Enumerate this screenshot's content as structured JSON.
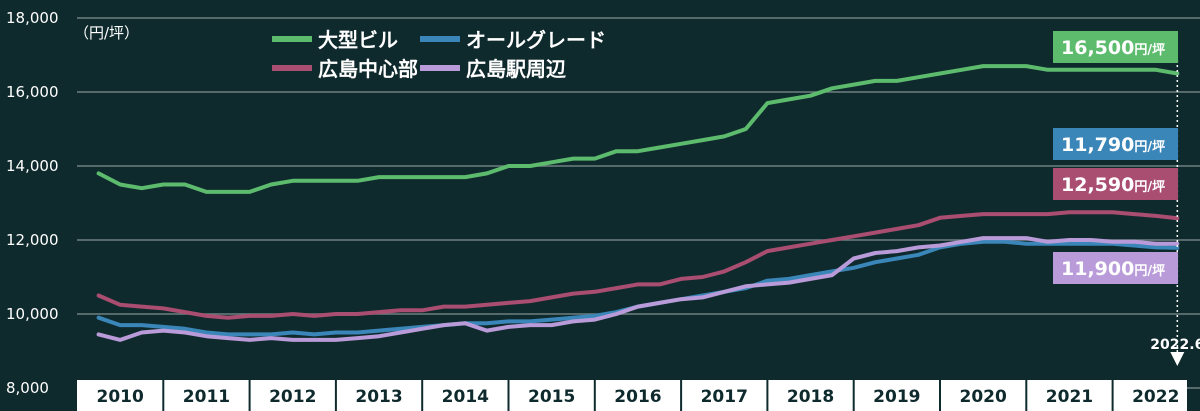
{
  "chart_data": {
    "type": "line",
    "unit_label": "（円/坪）",
    "ylim": [
      8000,
      18000
    ],
    "y_ticks": [
      8000,
      10000,
      12000,
      14000,
      16000,
      18000
    ],
    "y_tick_labels": [
      "8,000",
      "10,000",
      "12,000",
      "14,000",
      "16,000",
      "18,000"
    ],
    "x_categories": [
      "2010",
      "2011",
      "2012",
      "2013",
      "2014",
      "2015",
      "2016",
      "2017",
      "2018",
      "2019",
      "2020",
      "2021",
      "2022"
    ],
    "grid": true,
    "legend_placement": "top-center",
    "marker": {
      "label": "2022.6",
      "x": 2022.25
    },
    "series": [
      {
        "name": "大型ビル",
        "color": "#5dbb6e",
        "end_label": "16,500",
        "end_unit": "円/坪",
        "x": [
          2009.75,
          2010.0,
          2010.25,
          2010.5,
          2010.75,
          2011.0,
          2011.25,
          2011.5,
          2011.75,
          2012.0,
          2012.25,
          2012.5,
          2012.75,
          2013.0,
          2013.25,
          2013.5,
          2013.75,
          2014.0,
          2014.25,
          2014.5,
          2014.75,
          2015.0,
          2015.25,
          2015.5,
          2015.75,
          2016.0,
          2016.25,
          2016.5,
          2016.75,
          2017.0,
          2017.25,
          2017.5,
          2017.75,
          2018.0,
          2018.25,
          2018.5,
          2018.75,
          2019.0,
          2019.25,
          2019.5,
          2019.75,
          2020.0,
          2020.25,
          2020.5,
          2020.75,
          2021.0,
          2021.25,
          2021.5,
          2021.75,
          2022.0,
          2022.25
        ],
        "values": [
          13800,
          13500,
          13400,
          13500,
          13500,
          13300,
          13300,
          13300,
          13500,
          13600,
          13600,
          13600,
          13600,
          13700,
          13700,
          13700,
          13700,
          13700,
          13800,
          14000,
          14000,
          14100,
          14200,
          14200,
          14400,
          14400,
          14500,
          14600,
          14700,
          14800,
          15000,
          15700,
          15800,
          15900,
          16100,
          16200,
          16300,
          16300,
          16400,
          16500,
          16600,
          16700,
          16700,
          16700,
          16600,
          16600,
          16600,
          16600,
          16600,
          16600,
          16500
        ]
      },
      {
        "name": "オールグレード",
        "color": "#3a86b8",
        "end_label": "11,790",
        "end_unit": "円/坪",
        "x": [
          2009.75,
          2010.0,
          2010.25,
          2010.5,
          2010.75,
          2011.0,
          2011.25,
          2011.5,
          2011.75,
          2012.0,
          2012.25,
          2012.5,
          2012.75,
          2013.0,
          2013.25,
          2013.5,
          2013.75,
          2014.0,
          2014.25,
          2014.5,
          2014.75,
          2015.0,
          2015.25,
          2015.5,
          2015.75,
          2016.0,
          2016.25,
          2016.5,
          2016.75,
          2017.0,
          2017.25,
          2017.5,
          2017.75,
          2018.0,
          2018.25,
          2018.5,
          2018.75,
          2019.0,
          2019.25,
          2019.5,
          2019.75,
          2020.0,
          2020.25,
          2020.5,
          2020.75,
          2021.0,
          2021.25,
          2021.5,
          2021.75,
          2022.0,
          2022.25
        ],
        "values": [
          9900,
          9700,
          9700,
          9650,
          9600,
          9500,
          9450,
          9450,
          9450,
          9500,
          9450,
          9500,
          9500,
          9550,
          9600,
          9650,
          9700,
          9750,
          9750,
          9800,
          9800,
          9850,
          9900,
          9950,
          10050,
          10200,
          10300,
          10400,
          10500,
          10600,
          10700,
          10900,
          10950,
          11050,
          11150,
          11250,
          11400,
          11500,
          11600,
          11800,
          11900,
          11950,
          11950,
          11900,
          11900,
          11900,
          11900,
          11900,
          11850,
          11800,
          11790
        ]
      },
      {
        "name": "広島中心部",
        "color": "#a94d71",
        "end_label": "12,590",
        "end_unit": "円/坪",
        "x": [
          2009.75,
          2010.0,
          2010.25,
          2010.5,
          2010.75,
          2011.0,
          2011.25,
          2011.5,
          2011.75,
          2012.0,
          2012.25,
          2012.5,
          2012.75,
          2013.0,
          2013.25,
          2013.5,
          2013.75,
          2014.0,
          2014.25,
          2014.5,
          2014.75,
          2015.0,
          2015.25,
          2015.5,
          2015.75,
          2016.0,
          2016.25,
          2016.5,
          2016.75,
          2017.0,
          2017.25,
          2017.5,
          2017.75,
          2018.0,
          2018.25,
          2018.5,
          2018.75,
          2019.0,
          2019.25,
          2019.5,
          2019.75,
          2020.0,
          2020.25,
          2020.5,
          2020.75,
          2021.0,
          2021.25,
          2021.5,
          2021.75,
          2022.0,
          2022.25
        ],
        "values": [
          10500,
          10250,
          10200,
          10150,
          10050,
          9950,
          9900,
          9950,
          9950,
          10000,
          9950,
          10000,
          10000,
          10050,
          10100,
          10100,
          10200,
          10200,
          10250,
          10300,
          10350,
          10450,
          10550,
          10600,
          10700,
          10800,
          10800,
          10950,
          11000,
          11150,
          11400,
          11700,
          11800,
          11900,
          12000,
          12100,
          12200,
          12300,
          12400,
          12600,
          12650,
          12700,
          12700,
          12700,
          12700,
          12750,
          12750,
          12750,
          12700,
          12650,
          12590
        ]
      },
      {
        "name": "広島駅周辺",
        "color": "#b89bd8",
        "end_label": "11,900",
        "end_unit": "円/坪",
        "x": [
          2009.75,
          2010.0,
          2010.25,
          2010.5,
          2010.75,
          2011.0,
          2011.25,
          2011.5,
          2011.75,
          2012.0,
          2012.25,
          2012.5,
          2012.75,
          2013.0,
          2013.25,
          2013.5,
          2013.75,
          2014.0,
          2014.25,
          2014.5,
          2014.75,
          2015.0,
          2015.25,
          2015.5,
          2015.75,
          2016.0,
          2016.25,
          2016.5,
          2016.75,
          2017.0,
          2017.25,
          2017.5,
          2017.75,
          2018.0,
          2018.25,
          2018.5,
          2018.75,
          2019.0,
          2019.25,
          2019.5,
          2019.75,
          2020.0,
          2020.25,
          2020.5,
          2020.75,
          2021.0,
          2021.25,
          2021.5,
          2021.75,
          2022.0,
          2022.25
        ],
        "values": [
          9450,
          9300,
          9500,
          9550,
          9500,
          9400,
          9350,
          9300,
          9350,
          9300,
          9300,
          9300,
          9350,
          9400,
          9500,
          9600,
          9700,
          9750,
          9550,
          9650,
          9700,
          9700,
          9800,
          9850,
          10000,
          10200,
          10300,
          10400,
          10450,
          10600,
          10750,
          10800,
          10850,
          10950,
          11050,
          11500,
          11650,
          11700,
          11800,
          11850,
          11950,
          12050,
          12050,
          12050,
          11950,
          12000,
          12000,
          11950,
          11950,
          11900,
          11900
        ]
      }
    ]
  }
}
